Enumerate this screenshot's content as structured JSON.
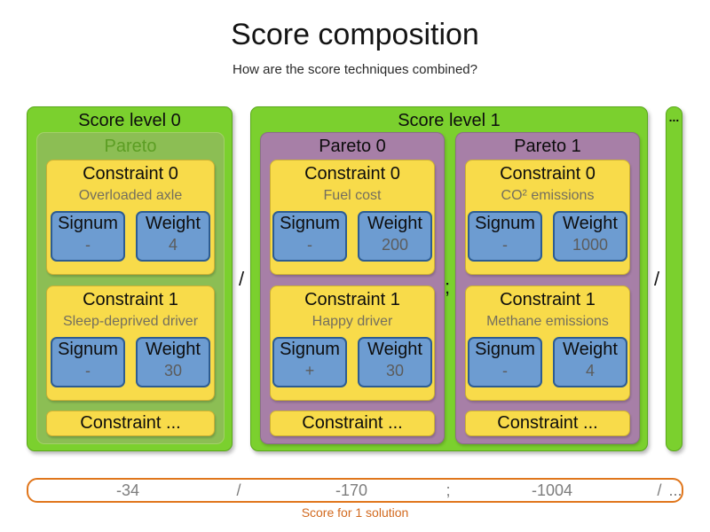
{
  "title": "Score composition",
  "subtitle": "How are the score techniques combined?",
  "labels": {
    "signum": "Signum",
    "weight": "Weight"
  },
  "score_levels": [
    {
      "label": "Score level 0",
      "paretos": [
        {
          "label": "Pareto",
          "constraints": [
            {
              "title": "Constraint 0",
              "name": "Overloaded axle",
              "signum": "-",
              "weight": "4"
            },
            {
              "title": "Constraint 1",
              "name": "Sleep-deprived driver",
              "signum": "-",
              "weight": "30"
            }
          ],
          "more": "Constraint ..."
        }
      ]
    },
    {
      "label": "Score level 1",
      "paretos": [
        {
          "label": "Pareto 0",
          "constraints": [
            {
              "title": "Constraint 0",
              "name": "Fuel cost",
              "signum": "-",
              "weight": "200"
            },
            {
              "title": "Constraint 1",
              "name": "Happy driver",
              "signum": "+",
              "weight": "30"
            }
          ],
          "more": "Constraint ..."
        },
        {
          "label": "Pareto 1",
          "constraints": [
            {
              "title": "Constraint 0",
              "name": "CO² emissions",
              "signum": "-",
              "weight": "1000"
            },
            {
              "title": "Constraint 1",
              "name": "Methane emissions",
              "signum": "-",
              "weight": "4"
            }
          ],
          "more": "Constraint ..."
        }
      ]
    },
    {
      "label": "..."
    }
  ],
  "separators": {
    "level0_level1": "/",
    "pareto0_pareto1": ";",
    "level1_more": "/"
  },
  "score_bar": {
    "level0_value": "-34",
    "sep1": "/",
    "pareto0_value": "-170",
    "sep2": ";",
    "pareto1_value": "-1004",
    "sep3": "/",
    "more_value": "...",
    "caption": "Score for 1 solution"
  },
  "colors": {
    "score_level_green": "#7bd02e",
    "pareto_plain_green": "#8cbe54",
    "pareto_purple": "#a77fa7",
    "constraint_yellow": "#f8db4a",
    "signum_weight_blue": "#6d9cd1",
    "score_bar_orange": "#e0761c",
    "caption_orange": "#d2691e",
    "muted_text_gray": "#7d7d7d"
  }
}
